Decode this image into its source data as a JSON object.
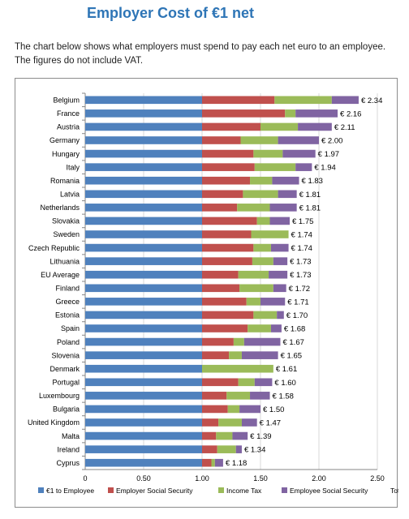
{
  "page": {
    "title": "Employer Cost of €1 net",
    "intro_line1": "The chart below shows what employers must spend to pay each net euro to an employee.",
    "intro_line2": "The figures do not include VAT."
  },
  "chart_data": {
    "type": "bar",
    "orientation": "horizontal",
    "stacked": true,
    "categories": [
      "Belgium",
      "France",
      "Austria",
      "Germany",
      "Hungary",
      "Italy",
      "Romania",
      "Latvia",
      "Netherlands",
      "Slovakia",
      "Sweden",
      "Czech Republic",
      "Lithuania",
      "EU Average",
      "Finland",
      "Greece",
      "Estonia",
      "Spain",
      "Poland",
      "Slovenia",
      "Denmark",
      "Portugal",
      "Luxembourg",
      "Bulgaria",
      "United Kingdom",
      "Malta",
      "Ireland",
      "Cyprus"
    ],
    "series": [
      {
        "name": "€1 to Employee",
        "color": "#4f81bd",
        "values": [
          1,
          1,
          1,
          1,
          1,
          1,
          1,
          1,
          1,
          1,
          1,
          1,
          1,
          1,
          1,
          1,
          1,
          1,
          1,
          1,
          1,
          1,
          1,
          1,
          1,
          1,
          1,
          1
        ]
      },
      {
        "name": "Employer Social Security",
        "color": "#c0504d",
        "values": [
          0.62,
          0.71,
          0.5,
          0.33,
          0.44,
          0.45,
          0.41,
          0.35,
          0.3,
          0.47,
          0.42,
          0.44,
          0.43,
          0.31,
          0.32,
          0.38,
          0.44,
          0.39,
          0.27,
          0.23,
          0.0,
          0.31,
          0.21,
          0.22,
          0.14,
          0.12,
          0.13,
          0.08
        ]
      },
      {
        "name": "Income Tax",
        "color": "#9bbb59",
        "values": [
          0.49,
          0.09,
          0.32,
          0.32,
          0.25,
          0.35,
          0.19,
          0.3,
          0.28,
          0.11,
          0.32,
          0.15,
          0.18,
          0.26,
          0.29,
          0.12,
          0.2,
          0.2,
          0.09,
          0.11,
          0.61,
          0.14,
          0.2,
          0.1,
          0.2,
          0.14,
          0.16,
          0.03
        ]
      },
      {
        "name": "Employee Social Security",
        "color": "#8064a2",
        "values": [
          0.23,
          0.36,
          0.29,
          0.35,
          0.28,
          0.14,
          0.23,
          0.16,
          0.23,
          0.17,
          0.0,
          0.15,
          0.12,
          0.16,
          0.11,
          0.21,
          0.06,
          0.09,
          0.31,
          0.31,
          0.0,
          0.15,
          0.17,
          0.18,
          0.13,
          0.13,
          0.05,
          0.07
        ]
      }
    ],
    "totals": [
      2.34,
      2.16,
      2.11,
      2.0,
      1.97,
      1.94,
      1.83,
      1.81,
      1.81,
      1.75,
      1.74,
      1.74,
      1.73,
      1.73,
      1.72,
      1.71,
      1.7,
      1.68,
      1.67,
      1.65,
      1.61,
      1.6,
      1.58,
      1.5,
      1.47,
      1.39,
      1.34,
      1.18
    ],
    "total_labels": [
      "€ 2.34",
      "€ 2.16",
      "€ 2.11",
      "€ 2.00",
      "€ 1.97",
      "€ 1.94",
      "€ 1.83",
      "€ 1.81",
      "€ 1.81",
      "€ 1.75",
      "€ 1.74",
      "€ 1.74",
      "€ 1.73",
      "€ 1.73",
      "€ 1.72",
      "€ 1.71",
      "€ 1.70",
      "€ 1.68",
      "€ 1.67",
      "€ 1.65",
      "€ 1.61",
      "€ 1.60",
      "€ 1.58",
      "€ 1.50",
      "€ 1.47",
      "€ 1.39",
      "€ 1.34",
      "€ 1.18"
    ],
    "xticks": [
      0,
      0.5,
      1.0,
      1.5,
      2.0,
      2.5
    ],
    "xtick_labels": [
      "0",
      "0.50",
      "1.00",
      "1.50",
      "2.00",
      "2.50"
    ],
    "xlim": [
      0,
      2.5
    ],
    "legend": [
      "€1 to Employee",
      "Employer Social Security",
      "Income Tax",
      "Employee Social Security",
      "Total"
    ],
    "legend_position": "bottom",
    "grid": true,
    "title": "",
    "xlabel": "",
    "ylabel": ""
  }
}
